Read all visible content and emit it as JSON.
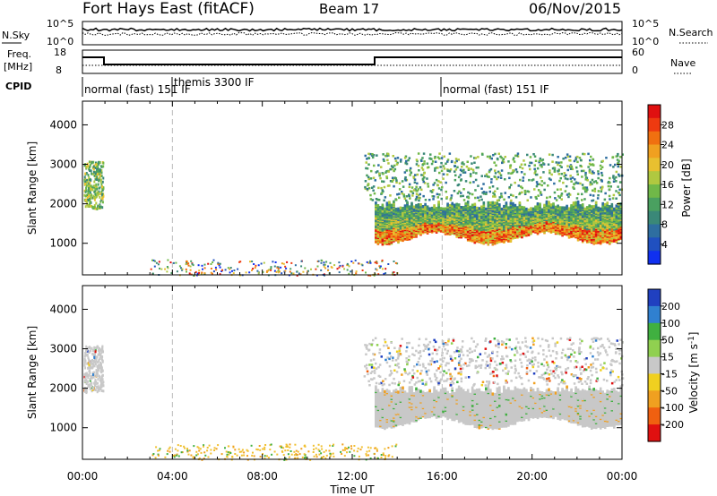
{
  "header": {
    "station": "Fort Hays East (fitACF)",
    "beam": "Beam 17",
    "date": "06/Nov/2015"
  },
  "colors": {
    "background": "#ffffff",
    "axis": "#000000",
    "grid_dash": "#bbbbbb",
    "ground_scatter": "#c8c8c8"
  },
  "top_panels": {
    "nsky_label": "N.Sky",
    "nsky_ticks": [
      "10^5",
      "10^0"
    ],
    "nsearch_label": "N.Search",
    "nsearch_ticks": [
      "10^5",
      "10^0"
    ],
    "freq_label": "Freq.",
    "freq_unit": "[MHz]",
    "freq_ticks": [
      "18",
      "8"
    ],
    "nave_label": "Nave",
    "nave_ticks": [
      "60",
      "0"
    ],
    "cpid_label": "CPID",
    "cpid_segments": [
      {
        "label": "normal (fast) 151 IF",
        "start": 0,
        "end": 4
      },
      {
        "label": "themis 3300 IF",
        "start": 4,
        "end": 16
      },
      {
        "label": "normal (fast) 151 IF",
        "start": 16,
        "end": 24
      }
    ]
  },
  "chart_data": [
    {
      "type": "heatmap",
      "panel": "power",
      "ylabel": "Slant Range [km]",
      "xlabel": "",
      "x_range_hours": [
        0,
        24
      ],
      "ylim": [
        200,
        4600
      ],
      "yticks": [
        1000,
        2000,
        3000,
        4000
      ],
      "colorbar": {
        "label": "Power [dB]",
        "ticks": [
          "4",
          "8",
          "12",
          "16",
          "20",
          "24",
          "28"
        ],
        "colors": [
          "#1030f0",
          "#2050c0",
          "#2e6ea0",
          "#3a8878",
          "#4aa060",
          "#70b848",
          "#b0c840",
          "#e8c030",
          "#f0a020",
          "#f07010",
          "#ee3a10",
          "#e01010"
        ]
      },
      "regions": [
        {
          "name": "early-echo",
          "x": [
            0.05,
            0.9
          ],
          "y": [
            1900,
            3100
          ],
          "level": "medium"
        },
        {
          "name": "main-band",
          "x": [
            13.0,
            24.0
          ],
          "y": [
            1000,
            2100
          ],
          "level": "high"
        },
        {
          "name": "upper-scatter",
          "x": [
            12.5,
            24.0
          ],
          "y": [
            2100,
            3300
          ],
          "level": "low"
        },
        {
          "name": "near-range",
          "x": [
            3.0,
            14.0
          ],
          "y": [
            200,
            600
          ],
          "level": "mixed"
        }
      ]
    },
    {
      "type": "heatmap",
      "panel": "velocity",
      "ylabel": "Slant Range [km]",
      "xlabel": "Time UT",
      "x_range_hours": [
        0,
        24
      ],
      "xticks": [
        "00:00",
        "04:00",
        "08:00",
        "12:00",
        "16:00",
        "20:00",
        "00:00"
      ],
      "ylim": [
        200,
        4600
      ],
      "yticks": [
        1000,
        2000,
        3000,
        4000
      ],
      "colorbar": {
        "label": "Velocity [m s-1]",
        "ticks": [
          "200",
          "100",
          "50",
          "15",
          "-15",
          "-50",
          "-100",
          "-200"
        ],
        "colors": [
          "#2040c0",
          "#3080d0",
          "#40b040",
          "#90d050",
          "#c8c8c8",
          "#f0d020",
          "#f0a020",
          "#f06010",
          "#e01010"
        ]
      },
      "regions": [
        {
          "name": "early-echo",
          "x": [
            0.05,
            0.9
          ],
          "y": [
            1900,
            3100
          ],
          "level": "ground"
        },
        {
          "name": "main-band",
          "x": [
            13.0,
            24.0
          ],
          "y": [
            1000,
            2100
          ],
          "level": "ground"
        },
        {
          "name": "upper-scatter",
          "x": [
            12.5,
            24.0
          ],
          "y": [
            2100,
            3300
          ],
          "level": "mixed"
        },
        {
          "name": "near-range",
          "x": [
            3.0,
            14.0
          ],
          "y": [
            200,
            600
          ],
          "level": "orange"
        }
      ]
    }
  ]
}
